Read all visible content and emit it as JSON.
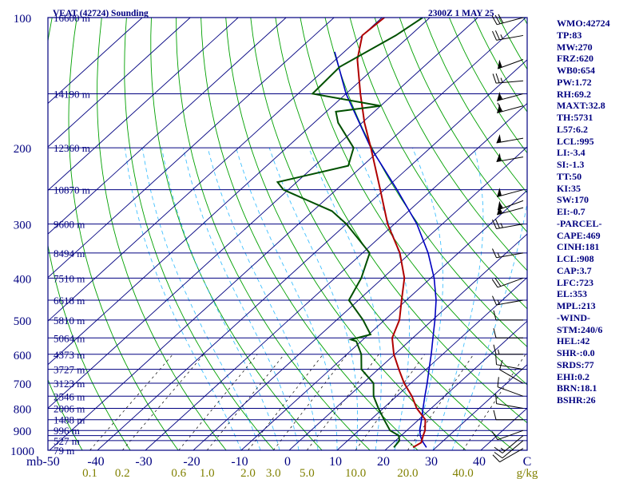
{
  "header": {
    "station": "VEAT (42724) Sounding",
    "time": "2300Z  1 MAY 25"
  },
  "colors": {
    "frame": "#000080",
    "isobar": "#000080",
    "isotherm": "#000080",
    "dry_adiabat": "#00a000",
    "moist_adiabat": "#40c0ff",
    "mixing_ratio": "#000000",
    "temperature": "#b00000",
    "dewpoint": "#005000",
    "parcel": "#0000c0",
    "mixing_label": "#808000",
    "wind": "#000000",
    "index_text": "#000080"
  },
  "chart_data": {
    "type": "skew-t",
    "title": "VEAT (42724) Sounding",
    "valid_time": "2300Z  1 MAY 25",
    "x_unit": "°C",
    "y_unit": "mb",
    "pressure_range": [
      1000,
      100
    ],
    "temperature_range": [
      -50,
      50
    ],
    "isobar_levels": [
      100,
      150,
      200,
      250,
      300,
      350,
      400,
      450,
      500,
      550,
      600,
      650,
      700,
      750,
      800,
      850,
      900,
      925,
      950,
      1000
    ],
    "pressure_tick_labels": [
      "100",
      "200",
      "300",
      "400",
      "500",
      "600",
      "700",
      "800",
      "900",
      "1000"
    ],
    "temperature_tick_labels": [
      "mb-50",
      "-40",
      "-30",
      "-20",
      "-10",
      "0",
      "10",
      "20",
      "30",
      "40",
      "C"
    ],
    "mixing_ratio_labels": [
      "0.1",
      "0.2",
      "0.6",
      "1.0",
      "2.0",
      "3.0",
      "5.0",
      "10.0",
      "20.0",
      "40.0",
      "g/kg"
    ],
    "mixing_ratio_values": [
      0.1,
      0.2,
      0.6,
      1.0,
      2.0,
      3.0,
      5.0,
      10.0,
      20.0,
      40.0
    ],
    "height_labels": [
      {
        "p": 100,
        "label": "16600 m"
      },
      {
        "p": 150,
        "label": "14190 m"
      },
      {
        "p": 200,
        "label": "12360 m"
      },
      {
        "p": 250,
        "label": "10870 m"
      },
      {
        "p": 300,
        "label": "9600 m"
      },
      {
        "p": 350,
        "label": "8494 m"
      },
      {
        "p": 400,
        "label": "7510 m"
      },
      {
        "p": 450,
        "label": "6618 m"
      },
      {
        "p": 500,
        "label": "5810 m"
      },
      {
        "p": 550,
        "label": "5064 m"
      },
      {
        "p": 600,
        "label": "4373 m"
      },
      {
        "p": 650,
        "label": "3727 m"
      },
      {
        "p": 700,
        "label": "3123 m"
      },
      {
        "p": 750,
        "label": "2546 m"
      },
      {
        "p": 800,
        "label": "2006 m"
      },
      {
        "p": 850,
        "label": "1488 m"
      },
      {
        "p": 900,
        "label": "996 m"
      },
      {
        "p": 950,
        "label": "527 m"
      },
      {
        "p": 1000,
        "label": "79 m"
      }
    ],
    "temperature_profile": [
      {
        "p": 985,
        "t": 25.2
      },
      {
        "p": 960,
        "t": 25.8
      },
      {
        "p": 925,
        "t": 24.6
      },
      {
        "p": 900,
        "t": 23.8
      },
      {
        "p": 850,
        "t": 21.4
      },
      {
        "p": 800,
        "t": 17.0
      },
      {
        "p": 750,
        "t": 13.2
      },
      {
        "p": 700,
        "t": 8.6
      },
      {
        "p": 650,
        "t": 4.3
      },
      {
        "p": 600,
        "t": -0.2
      },
      {
        "p": 550,
        "t": -4.3
      },
      {
        "p": 500,
        "t": -6.9
      },
      {
        "p": 450,
        "t": -11.0
      },
      {
        "p": 400,
        "t": -15.5
      },
      {
        "p": 350,
        "t": -22.2
      },
      {
        "p": 300,
        "t": -31.4
      },
      {
        "p": 250,
        "t": -40.8
      },
      {
        "p": 200,
        "t": -52.4
      },
      {
        "p": 175,
        "t": -59.5
      },
      {
        "p": 150,
        "t": -67.0
      },
      {
        "p": 125,
        "t": -75.5
      },
      {
        "p": 110,
        "t": -80.0
      },
      {
        "p": 100,
        "t": -79.5
      }
    ],
    "dewpoint_profile": [
      {
        "p": 985,
        "td": 21.2
      },
      {
        "p": 950,
        "td": 20.8
      },
      {
        "p": 925,
        "td": 19.5
      },
      {
        "p": 900,
        "td": 16.5
      },
      {
        "p": 850,
        "td": 12.8
      },
      {
        "p": 800,
        "td": 9.0
      },
      {
        "p": 750,
        "td": 5.2
      },
      {
        "p": 700,
        "td": 2.2
      },
      {
        "p": 650,
        "td": -3.5
      },
      {
        "p": 600,
        "td": -7.0
      },
      {
        "p": 560,
        "td": -11.0
      },
      {
        "p": 555,
        "td": -12.5
      },
      {
        "p": 540,
        "td": -9.6
      },
      {
        "p": 500,
        "td": -14.5
      },
      {
        "p": 450,
        "td": -22.0
      },
      {
        "p": 400,
        "td": -24.5
      },
      {
        "p": 350,
        "td": -28.5
      },
      {
        "p": 300,
        "td": -40.0
      },
      {
        "p": 280,
        "td": -46.0
      },
      {
        "p": 250,
        "td": -61.0
      },
      {
        "p": 240,
        "td": -64.0
      },
      {
        "p": 220,
        "td": -53.0
      },
      {
        "p": 200,
        "td": -56.0
      },
      {
        "p": 175,
        "td": -65.0
      },
      {
        "p": 165,
        "td": -68.0
      },
      {
        "p": 160,
        "td": -60.0
      },
      {
        "p": 150,
        "td": -77.0
      },
      {
        "p": 130,
        "td": -77.5
      },
      {
        "p": 110,
        "td": -73.0
      },
      {
        "p": 100,
        "td": -71.5
      }
    ],
    "parcel_profile": [
      {
        "p": 985,
        "t": 28.0
      },
      {
        "p": 950,
        "t": 25.5
      },
      {
        "p": 925,
        "t": 24.0
      },
      {
        "p": 900,
        "t": 22.7
      },
      {
        "p": 850,
        "t": 20.6
      },
      {
        "p": 800,
        "t": 18.3
      },
      {
        "p": 750,
        "t": 15.9
      },
      {
        "p": 700,
        "t": 13.4
      },
      {
        "p": 650,
        "t": 10.6
      },
      {
        "p": 600,
        "t": 7.6
      },
      {
        "p": 550,
        "t": 4.2
      },
      {
        "p": 500,
        "t": 0.5
      },
      {
        "p": 450,
        "t": -3.8
      },
      {
        "p": 400,
        "t": -9.3
      },
      {
        "p": 350,
        "t": -16.3
      },
      {
        "p": 300,
        "t": -25.3
      },
      {
        "p": 250,
        "t": -37.3
      },
      {
        "p": 200,
        "t": -52.4
      },
      {
        "p": 150,
        "t": -70.0
      },
      {
        "p": 120,
        "t": -82.0
      }
    ],
    "wind_barbs": [
      {
        "p": 990,
        "dir": 240,
        "spd": 10
      },
      {
        "p": 950,
        "dir": 230,
        "spd": 10
      },
      {
        "p": 925,
        "dir": 230,
        "spd": 15
      },
      {
        "p": 900,
        "dir": 250,
        "spd": 10
      },
      {
        "p": 850,
        "dir": 270,
        "spd": 10
      },
      {
        "p": 800,
        "dir": 280,
        "spd": 10
      },
      {
        "p": 750,
        "dir": 290,
        "spd": 10
      },
      {
        "p": 700,
        "dir": 300,
        "spd": 10
      },
      {
        "p": 650,
        "dir": 280,
        "spd": 10
      },
      {
        "p": 600,
        "dir": 270,
        "spd": 15
      },
      {
        "p": 550,
        "dir": 270,
        "spd": 10
      },
      {
        "p": 500,
        "dir": 270,
        "spd": 10
      },
      {
        "p": 450,
        "dir": 260,
        "spd": 15
      },
      {
        "p": 400,
        "dir": 250,
        "spd": 20
      },
      {
        "p": 350,
        "dir": 260,
        "spd": 15
      },
      {
        "p": 300,
        "dir": 260,
        "spd": 25
      },
      {
        "p": 275,
        "dir": 255,
        "spd": 55
      },
      {
        "p": 265,
        "dir": 250,
        "spd": 55
      },
      {
        "p": 250,
        "dir": 255,
        "spd": 50
      },
      {
        "p": 210,
        "dir": 260,
        "spd": 50
      },
      {
        "p": 190,
        "dir": 260,
        "spd": 50
      },
      {
        "p": 160,
        "dir": 255,
        "spd": 60
      },
      {
        "p": 150,
        "dir": 255,
        "spd": 55
      },
      {
        "p": 140,
        "dir": 265,
        "spd": 25
      },
      {
        "p": 125,
        "dir": 250,
        "spd": 50
      },
      {
        "p": 110,
        "dir": 260,
        "spd": 25
      },
      {
        "p": 100,
        "dir": 255,
        "spd": 30
      }
    ],
    "grid": true,
    "legend": "none"
  },
  "indices": [
    "WMO:42724",
    "TP:83",
    "MW:270",
    "FRZ:620",
    "WB0:654",
    "PW:1.72",
    "RH:69.2",
    "MAXT:32.8",
    "TH:5731",
    "L57:6.2",
    "LCL:995",
    "LI:-3.4",
    "SI:-1.3",
    "TT:50",
    "KI:35",
    "SW:170",
    "EI:-0.7",
    "-PARCEL-",
    "CAPE:469",
    "CINH:181",
    "LCL:908",
    "CAP:3.7",
    "LFC:723",
    "EL:353",
    "MPL:213",
    "-WIND-",
    "STM:240/6",
    "HEL:42",
    "SHR-:0.0",
    "SRDS:77",
    "EHI:0.2",
    "BRN:18.1",
    "BSHR:26"
  ]
}
